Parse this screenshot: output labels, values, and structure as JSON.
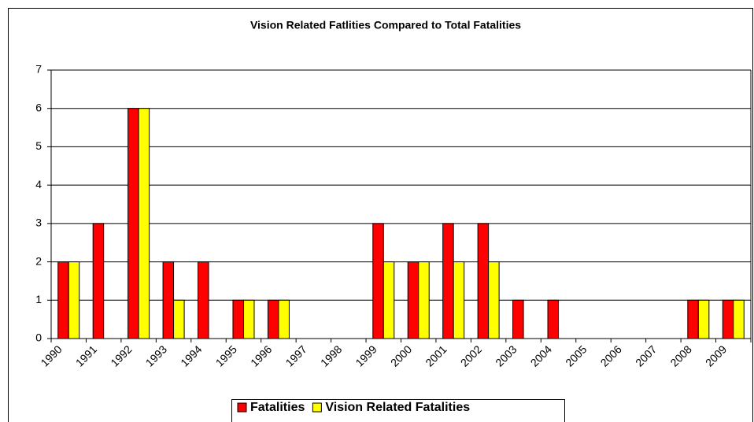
{
  "chart_data": {
    "type": "bar",
    "title": "Vision Related Fatlities Compared to Total Fatalities",
    "categories": [
      "1990",
      "1991",
      "1992",
      "1993",
      "1994",
      "1995",
      "1996",
      "1997",
      "1998",
      "1999",
      "2000",
      "2001",
      "2002",
      "2003",
      "2004",
      "2005",
      "2006",
      "2007",
      "2008",
      "2009"
    ],
    "series": [
      {
        "name": "Fatalities",
        "color": "#ff0000",
        "values": [
          2,
          3,
          6,
          2,
          2,
          1,
          1,
          0,
          0,
          3,
          2,
          3,
          3,
          1,
          1,
          0,
          0,
          0,
          1,
          1
        ]
      },
      {
        "name": "Vision Related Fatalities",
        "color": "#ffff00",
        "values": [
          2,
          0,
          6,
          1,
          0,
          1,
          1,
          0,
          0,
          2,
          2,
          2,
          2,
          0,
          0,
          0,
          0,
          0,
          1,
          1
        ]
      }
    ],
    "ylim": [
      0,
      7
    ],
    "yticks": [
      0,
      1,
      2,
      3,
      4,
      5,
      6,
      7
    ],
    "grid": true,
    "legend": "bottom"
  }
}
